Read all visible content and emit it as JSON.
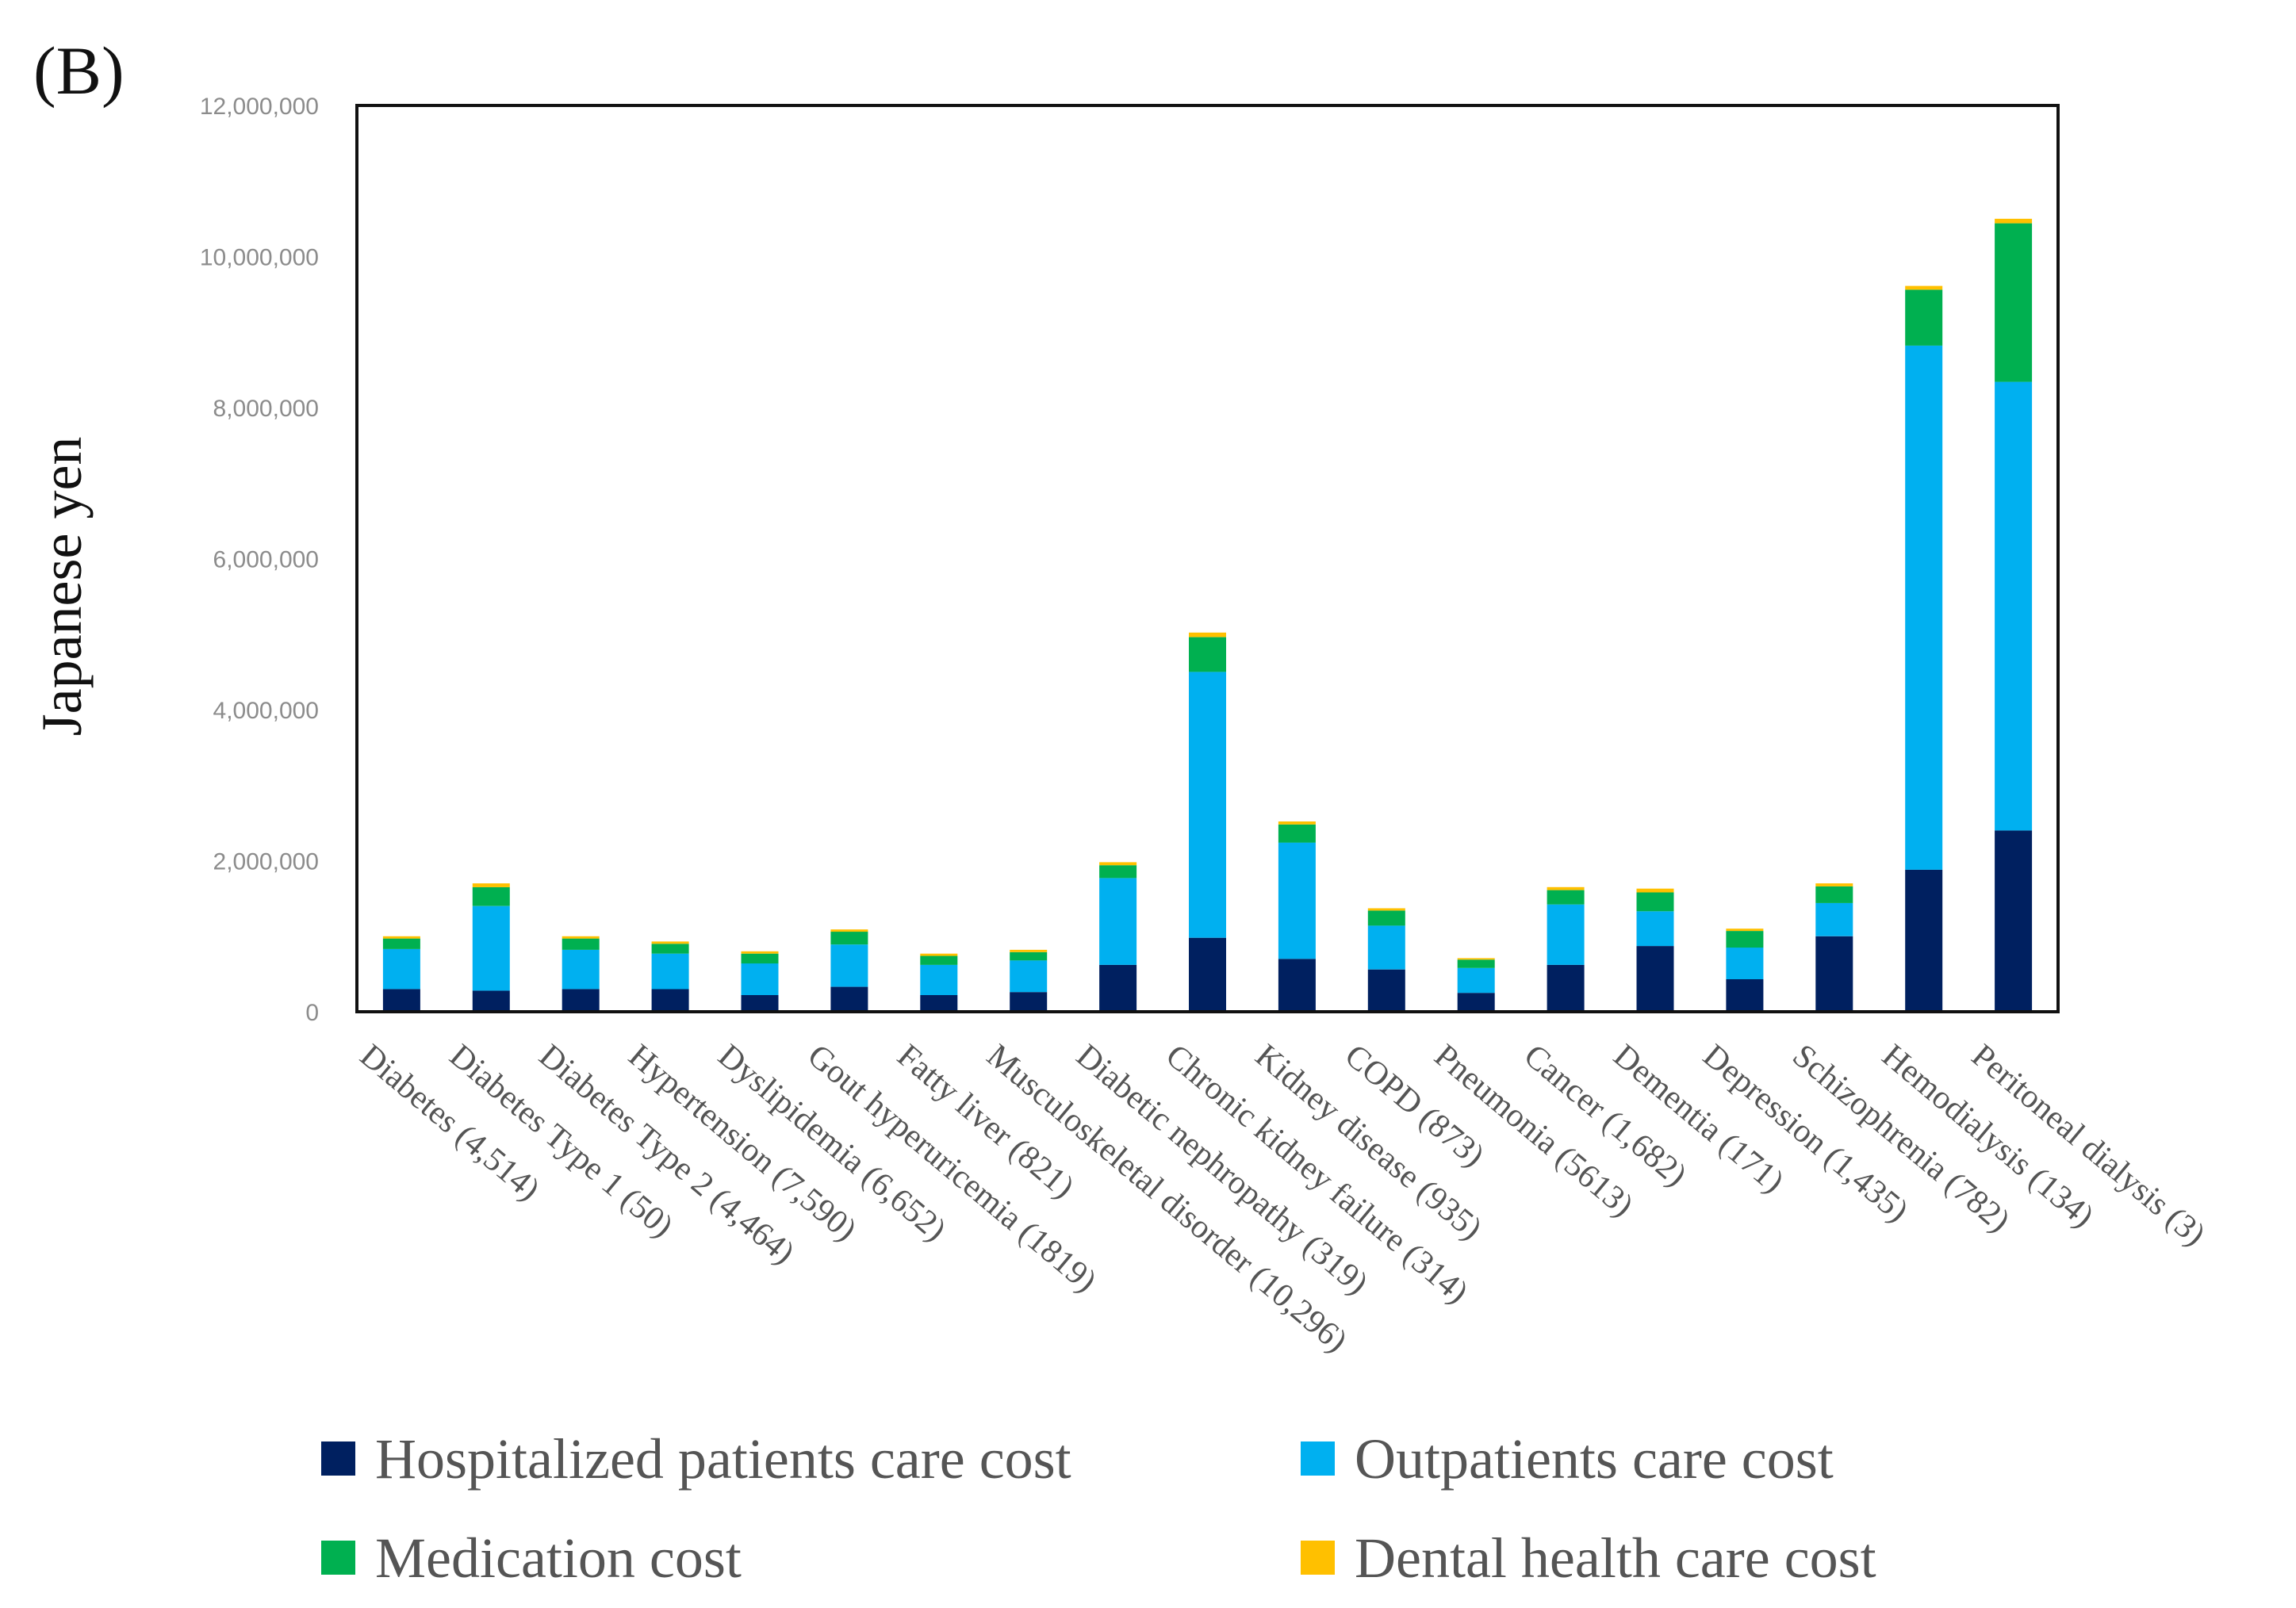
{
  "panel_label": "(B)",
  "chart_data": {
    "type": "bar",
    "stacked": true,
    "ylabel": "Japanese yen",
    "xlabel": "",
    "ylim": [
      0,
      12000000
    ],
    "yticks": [
      0,
      2000000,
      4000000,
      6000000,
      8000000,
      10000000,
      12000000
    ],
    "ytick_labels": [
      "0",
      "2,000,000",
      "4,000,000",
      "6,000,000",
      "8,000,000",
      "10,000,000",
      "12,000,000"
    ],
    "grid": false,
    "legend_position": "bottom",
    "categories": [
      "Diabetes (4,514)",
      "Diabetes Type 1 (50)",
      "Diabetes Type 2 (4,464)",
      "Hypertension (7,590)",
      "Dyslipidemia (6,652)",
      "Gout hyperuricemia (1819)",
      "Fatty liver (821)",
      "Musculoskeletal disorder (10,296)",
      "Diabetic nephropathy (319)",
      "Chronic kidney failure (314)",
      "Kidney disease (935)",
      "COPD (873)",
      "Pneumonia (5613)",
      "Cancer (1,682)",
      "Dementia (171)",
      "Depression (1,435)",
      "Schizophrenia (782)",
      "Hemodialysis (134)",
      "Peritoneal dialysis (3)"
    ],
    "series": [
      {
        "name": "Hospitalized patients care cost",
        "color": "#002060",
        "values": [
          300000,
          280000,
          300000,
          300000,
          220000,
          330000,
          220000,
          260000,
          620000,
          980000,
          700000,
          560000,
          250000,
          620000,
          870000,
          430000,
          1000000,
          1880000,
          2400000
        ]
      },
      {
        "name": "Outpatients care cost",
        "color": "#00B0F0",
        "values": [
          530000,
          1120000,
          520000,
          470000,
          420000,
          560000,
          400000,
          420000,
          1150000,
          3520000,
          1540000,
          580000,
          330000,
          800000,
          460000,
          420000,
          440000,
          6940000,
          5940000
        ]
      },
      {
        "name": "Medication cost",
        "color": "#00B050",
        "values": [
          140000,
          250000,
          150000,
          130000,
          130000,
          170000,
          120000,
          110000,
          170000,
          460000,
          240000,
          200000,
          110000,
          190000,
          250000,
          220000,
          220000,
          740000,
          2100000
        ]
      },
      {
        "name": "Dental health care cost",
        "color": "#FFC000",
        "values": [
          30000,
          50000,
          30000,
          30000,
          30000,
          30000,
          30000,
          30000,
          40000,
          60000,
          40000,
          30000,
          20000,
          40000,
          50000,
          30000,
          40000,
          50000,
          60000
        ]
      }
    ]
  }
}
